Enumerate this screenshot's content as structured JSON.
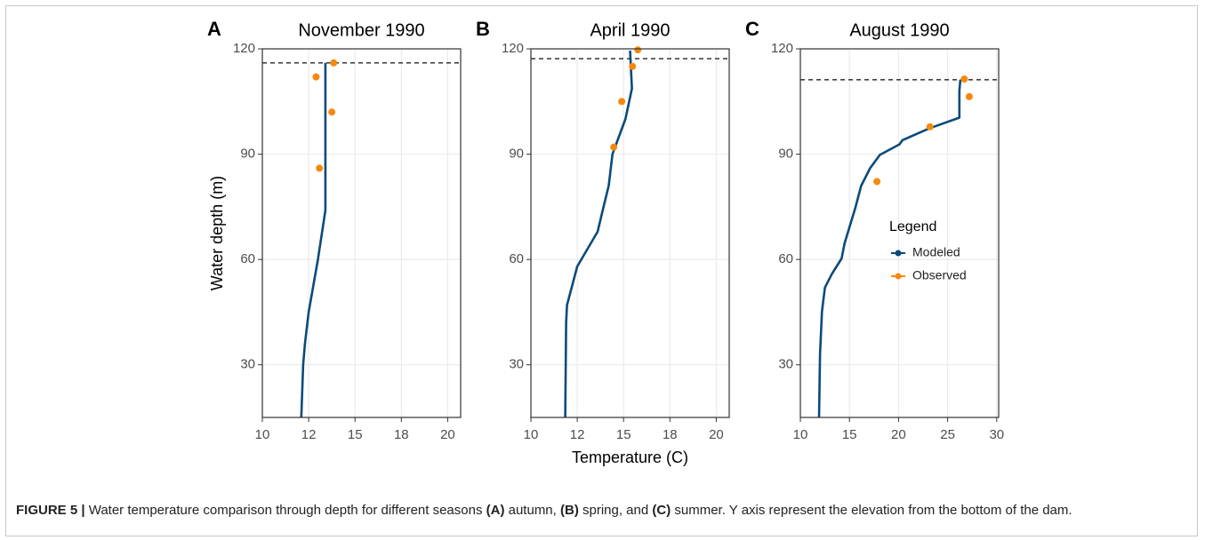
{
  "chart_data": [
    {
      "type": "line",
      "panel_label": "A",
      "title": "November 1990",
      "ylabel": "Water depth (m)",
      "xlim": [
        10,
        20.7
      ],
      "xticks": [
        10,
        {
          "value": 12.5,
          "label": "12"
        },
        15,
        {
          "value": 17.5,
          "label": "18"
        },
        20
      ],
      "ylim": [
        15,
        120
      ],
      "yticks": [
        30,
        60,
        90,
        120
      ],
      "grid": true,
      "hline": 116,
      "series": [
        {
          "kind": "line",
          "color": "#0b4a7a",
          "x": [
            13.4,
            13.4,
            13.0,
            12.5,
            12.3,
            12.2,
            12.1
          ],
          "values": [
            116,
            74,
            60,
            45,
            36,
            30,
            15
          ]
        },
        {
          "kind": "scatter",
          "color": "#f5890f",
          "x": [
            13.85,
            12.9,
            13.75,
            13.08
          ],
          "values": [
            116,
            112,
            102,
            86
          ]
        }
      ]
    },
    {
      "type": "line",
      "panel_label": "B",
      "title": "April 1990",
      "xlabel": "Temperature (C)",
      "xlim": [
        10,
        20.7
      ],
      "xticks": [
        10,
        {
          "value": 12.5,
          "label": "12"
        },
        15,
        {
          "value": 17.5,
          "label": "18"
        },
        20
      ],
      "ylim": [
        15,
        120
      ],
      "yticks": [
        30,
        60,
        90,
        120
      ],
      "grid": true,
      "hline": 117.2,
      "series": [
        {
          "kind": "line",
          "color": "#0b4a7a",
          "x": [
            15.35,
            15.45,
            15.1,
            14.4,
            14.2,
            13.9,
            13.6,
            12.5,
            11.95,
            11.9,
            11.85
          ],
          "values": [
            119.5,
            108.7,
            100,
            90,
            81,
            74.6,
            67.9,
            58,
            47,
            42,
            15
          ]
        },
        {
          "kind": "scatter",
          "color": "#f5890f",
          "x": [
            15.77,
            15.48,
            14.9,
            14.47
          ],
          "values": [
            119.7,
            115,
            105,
            92
          ]
        }
      ]
    },
    {
      "type": "line",
      "panel_label": "C",
      "title": "August 1990",
      "xlim": [
        10,
        30.2
      ],
      "xticks": [
        10,
        15,
        20,
        25,
        30
      ],
      "ylim": [
        15,
        120
      ],
      "yticks": [
        30,
        60,
        90,
        120
      ],
      "grid": true,
      "hline": 111.2,
      "legend": "inside",
      "legend_title": "Legend",
      "series": [
        {
          "name": "Modeled",
          "kind": "line",
          "color": "#0b4a7a",
          "x": [
            26.3,
            26.2,
            26.2,
            23.1,
            20.4,
            20.1,
            18.1,
            17.1,
            16.2,
            15.6,
            14.5,
            14.2,
            13.2,
            12.5,
            12.2,
            12.0,
            11.9
          ],
          "values": [
            111.2,
            108,
            100.4,
            97.3,
            94,
            92.8,
            89.8,
            86,
            81,
            74.7,
            64.6,
            60.3,
            55.8,
            52,
            45.2,
            33,
            15
          ]
        },
        {
          "name": "Observed",
          "kind": "scatter",
          "color": "#f5890f",
          "x": [
            26.7,
            27.2,
            23.2,
            17.8
          ],
          "values": [
            111.4,
            106.4,
            97.8,
            82.2
          ]
        }
      ]
    }
  ],
  "caption": {
    "parts": [
      {
        "text": "FIGURE 5 |",
        "bold": true
      },
      {
        "text": " Water temperature comparison through depth for different seasons ",
        "bold": false
      },
      {
        "text": "(A)",
        "bold": true
      },
      {
        "text": " autumn, ",
        "bold": false
      },
      {
        "text": "(B)",
        "bold": true
      },
      {
        "text": " spring, and ",
        "bold": false
      },
      {
        "text": "(C)",
        "bold": true
      },
      {
        "text": " summer. Y axis represent the elevation from the bottom of the dam.",
        "bold": false
      }
    ]
  }
}
